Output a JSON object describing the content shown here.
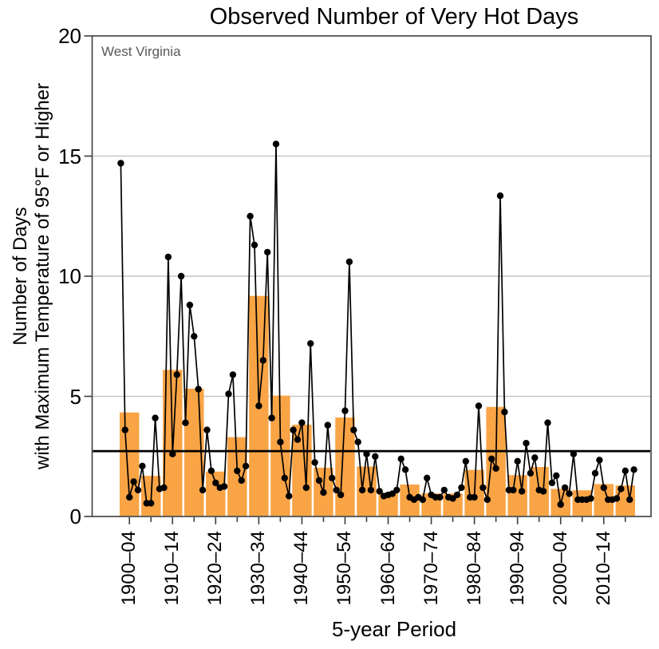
{
  "title": "Observed Number of Very Hot Days",
  "region_label": "West Virginia",
  "chart_data": {
    "type": "bar+line",
    "title": "Observed Number of Very Hot Days",
    "subtitle_region": "West Virginia",
    "xlabel": "5-year Period",
    "ylabel_line1": "Number of Days",
    "ylabel_line2": "with Maximum Temperature of 95°F or Higher",
    "ylim": [
      0,
      20
    ],
    "yticks": [
      0,
      5,
      10,
      15,
      20
    ],
    "grid": "horizontal at 5,10,15",
    "legend_position": "none",
    "average_line_value": 2.72,
    "bar_periods": [
      "1900–04",
      "1905–09",
      "1910–14",
      "1915–19",
      "1920–24",
      "1925–29",
      "1930–34",
      "1935–39",
      "1940–44",
      "1945–49",
      "1950–54",
      "1955–59",
      "1960–64",
      "1965–69",
      "1970–74",
      "1975–79",
      "1980–84",
      "1985–89",
      "1990–94",
      "1995–99",
      "2000–04",
      "2005–09",
      "2010–14",
      "2015–19"
    ],
    "bar_values": [
      4.33,
      1.69,
      6.1,
      5.32,
      1.87,
      3.3,
      9.18,
      5.03,
      3.82,
      2.03,
      4.12,
      2.08,
      0.97,
      1.33,
      0.96,
      0.95,
      1.94,
      4.56,
      1.72,
      2.06,
      1.15,
      1.09,
      1.35,
      1.29
    ],
    "xtick_labels_shown": [
      "1900–04",
      "1910–14",
      "1920–24",
      "1930–34",
      "1940–44",
      "1950–54",
      "1960–64",
      "1970–74",
      "1980–84",
      "1990–94",
      "2000–04",
      "2010–14"
    ],
    "annual_series": {
      "start_year": 1900,
      "values": [
        14.7,
        3.6,
        0.8,
        1.45,
        1.1,
        2.1,
        0.55,
        0.55,
        4.1,
        1.15,
        1.2,
        10.8,
        2.6,
        5.9,
        10.0,
        3.9,
        8.8,
        7.5,
        5.3,
        1.1,
        3.6,
        1.9,
        1.4,
        1.2,
        1.25,
        5.1,
        5.9,
        1.9,
        1.5,
        2.1,
        12.5,
        11.3,
        4.6,
        6.5,
        11.0,
        4.1,
        15.5,
        3.1,
        1.6,
        0.85,
        3.6,
        3.2,
        3.9,
        1.2,
        7.2,
        2.25,
        1.5,
        1.0,
        3.8,
        1.6,
        1.1,
        0.9,
        4.4,
        10.6,
        3.6,
        3.1,
        1.1,
        2.6,
        1.1,
        2.5,
        1.05,
        0.85,
        0.9,
        0.95,
        1.1,
        2.4,
        1.95,
        0.8,
        0.7,
        0.8,
        0.7,
        1.6,
        0.9,
        0.8,
        0.8,
        1.1,
        0.8,
        0.75,
        0.9,
        1.2,
        2.3,
        0.8,
        0.8,
        4.6,
        1.2,
        0.7,
        2.4,
        2.0,
        13.35,
        4.35,
        1.1,
        1.1,
        2.3,
        1.05,
        3.05,
        1.8,
        2.45,
        1.1,
        1.05,
        3.9,
        1.4,
        1.7,
        0.5,
        1.2,
        0.95,
        2.6,
        0.7,
        0.7,
        0.7,
        0.75,
        1.8,
        2.35,
        1.2,
        0.7,
        0.7,
        0.75,
        1.15,
        1.9,
        0.7,
        1.95
      ]
    },
    "colors": {
      "bar": "#F9A445",
      "annual_line": "#000000",
      "data_point": "#000000",
      "average_line": "#000000",
      "gridline": "#c6c6c6",
      "plot_border": "#3d3d3d",
      "tick": "#3d3d3d",
      "region_label_text": "#595959",
      "background": "#ffffff"
    }
  }
}
